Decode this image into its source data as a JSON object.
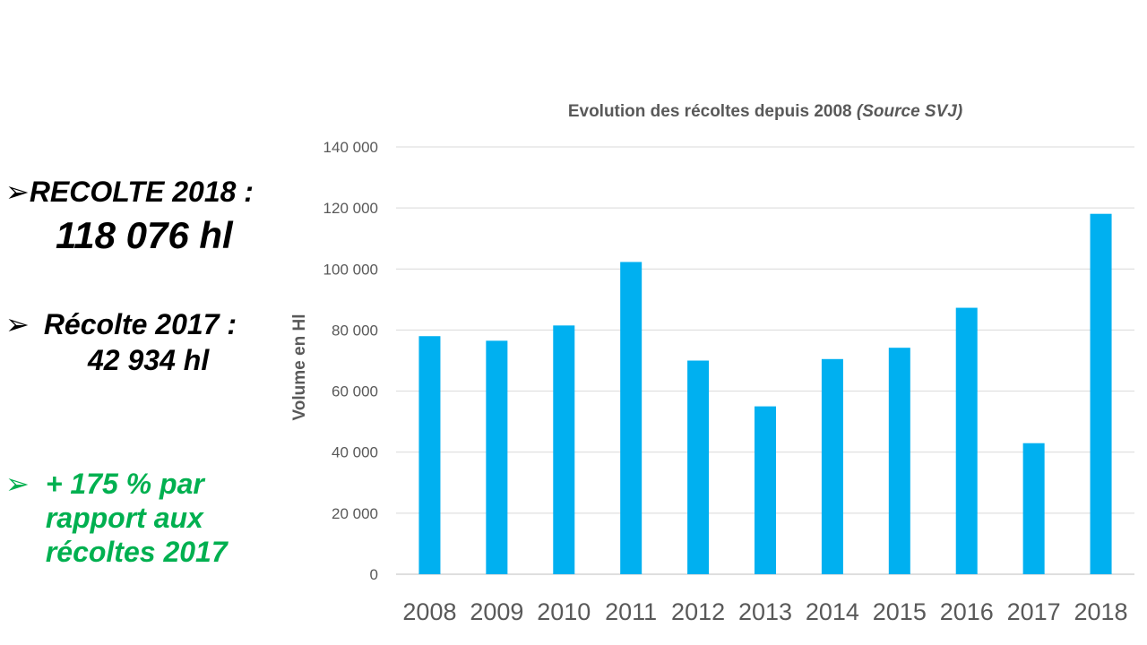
{
  "bullets": {
    "recolte_2018": {
      "label": "RECOLTE 2018 :",
      "value": "118 076 hl"
    },
    "recolte_2017": {
      "label": "Récolte 2017 :",
      "value": "42 934 hl"
    },
    "comparison": {
      "text": "+ 175 % par rapport aux récoltes 2017",
      "color": "#00b050"
    }
  },
  "chart_data": {
    "type": "bar",
    "title": "Evolution des récoltes depuis 2008",
    "title_note": "(Source SVJ)",
    "ylabel": "Volume en Hl",
    "xlabel": "",
    "categories": [
      "2008",
      "2009",
      "2010",
      "2011",
      "2012",
      "2013",
      "2014",
      "2015",
      "2016",
      "2017",
      "2018"
    ],
    "values": [
      78000,
      76500,
      81500,
      102300,
      70000,
      55000,
      70500,
      74200,
      87300,
      42934,
      118076
    ],
    "ylim": [
      0,
      140000
    ],
    "yticks": [
      "0",
      "20 000",
      "40 000",
      "60 000",
      "80 000",
      "100 000",
      "120 000",
      "140 000"
    ],
    "grid": true,
    "bar_color": "#00b0f0"
  }
}
